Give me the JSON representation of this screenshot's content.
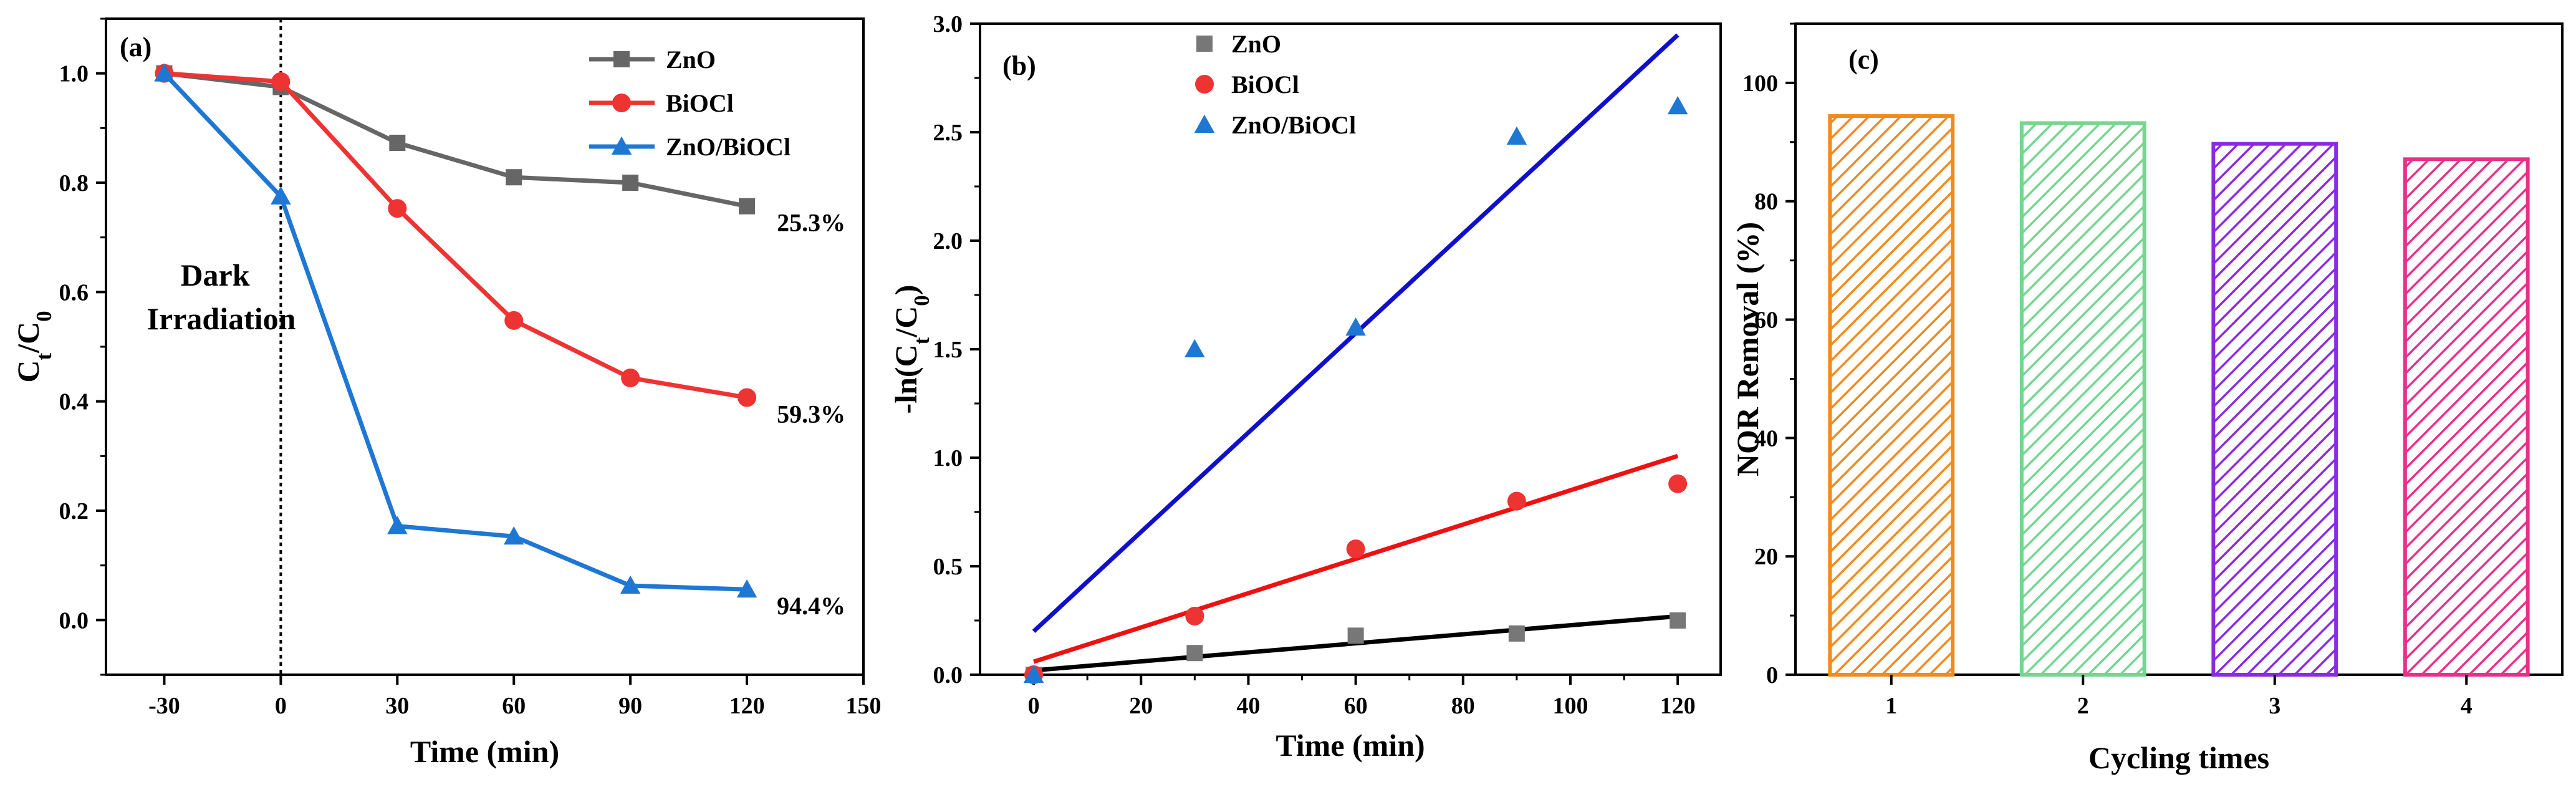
{
  "chart_data": [
    {
      "panel": "(a)",
      "type": "line",
      "xlabel": "Time (min)",
      "ylabel": "C_t/C_0",
      "xlim": [
        -45,
        150
      ],
      "ylim": [
        -0.1,
        1.1
      ],
      "xticks": [
        "-30",
        "0",
        "30",
        "60",
        "90",
        "120",
        "150"
      ],
      "yticks": [
        "0.0",
        "0.2",
        "0.4",
        "0.6",
        "0.8",
        "1.0"
      ],
      "x": [
        -30,
        0,
        30,
        60,
        90,
        120
      ],
      "dark_line_x": 0,
      "annotations": [
        "Dark",
        "Irradiation"
      ],
      "series": [
        {
          "name": "ZnO",
          "color": "#666666",
          "marker": "square",
          "values": [
            1.0,
            0.975,
            0.873,
            0.81,
            0.8,
            0.757
          ],
          "end_label": "25.3%"
        },
        {
          "name": "BiOCl",
          "color": "#ee3333",
          "marker": "circle",
          "values": [
            1.0,
            0.985,
            0.753,
            0.548,
            0.443,
            0.407
          ],
          "end_label": "59.3%"
        },
        {
          "name": "ZnO/BiOCl",
          "color": "#1f77d4",
          "marker": "triangle",
          "values": [
            1.0,
            0.775,
            0.172,
            0.153,
            0.063,
            0.056
          ],
          "end_label": "94.4%"
        }
      ]
    },
    {
      "panel": "(b)",
      "type": "scatter",
      "xlabel": "Time (min)",
      "ylabel": "-ln(C_t/C_0)",
      "xlim": [
        -10,
        128
      ],
      "ylim": [
        0,
        3.0
      ],
      "xticks": [
        "0",
        "20",
        "40",
        "60",
        "80",
        "100",
        "120"
      ],
      "yticks": [
        "0.0",
        "0.5",
        "1.0",
        "1.5",
        "2.0",
        "2.5",
        "3.0"
      ],
      "x": [
        0,
        30,
        60,
        90,
        120
      ],
      "series": [
        {
          "name": "ZnO",
          "color": "#777777",
          "marker": "square",
          "values": [
            0.0,
            0.1,
            0.18,
            0.19,
            0.25
          ],
          "fit": {
            "color": "#000000",
            "intercept": 0.02,
            "slope": 0.00208
          }
        },
        {
          "name": "BiOCl",
          "color": "#ee3333",
          "marker": "circle",
          "values": [
            0.0,
            0.27,
            0.58,
            0.8,
            0.88
          ],
          "fit": {
            "color": "#ee1111",
            "intercept": 0.06,
            "slope": 0.0079
          }
        },
        {
          "name": "ZnO/BiOCl",
          "color": "#1f77d4",
          "marker": "triangle",
          "values": [
            0.0,
            1.5,
            1.6,
            2.48,
            2.62
          ],
          "fit": {
            "color": "#1010cc",
            "intercept": 0.2,
            "slope": 0.0229
          }
        }
      ]
    },
    {
      "panel": "(c)",
      "type": "bar",
      "xlabel": "Cycling times",
      "ylabel": "NOR Removal (%)",
      "xlim": [
        0.5,
        4.5
      ],
      "ylim": [
        0,
        110
      ],
      "yticks": [
        "0",
        "20",
        "40",
        "60",
        "80",
        "100"
      ],
      "categories": [
        "1",
        "2",
        "3",
        "4"
      ],
      "values": [
        94.4,
        93.2,
        89.7,
        87.1
      ],
      "colors": [
        "#f28a1e",
        "#74d68f",
        "#8a2be2",
        "#e8308a"
      ]
    }
  ]
}
